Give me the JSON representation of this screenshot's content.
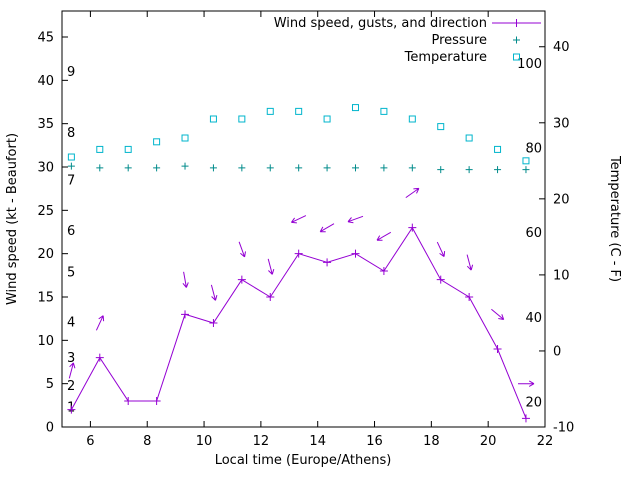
{
  "chart_data": {
    "type": "line",
    "title": "",
    "xlabel": "Local time (Europe/Athens)",
    "ylabel_left": "Wind speed (kt - Beaufort)",
    "ylabel_right": "Temperature (C - F)",
    "x_range": [
      5,
      22
    ],
    "y_left_range": [
      0,
      48
    ],
    "y_right_range": [
      -10,
      44.7
    ],
    "x_ticks": [
      6,
      8,
      10,
      12,
      14,
      16,
      18,
      20,
      22
    ],
    "y_left_ticks": [
      0,
      5,
      10,
      15,
      20,
      25,
      30,
      35,
      40,
      45
    ],
    "y_right_ticks": [
      -10,
      0,
      10,
      20,
      30,
      40
    ],
    "x": [
      5.33,
      6.33,
      7.33,
      8.33,
      9.33,
      10.33,
      11.33,
      12.33,
      13.33,
      14.33,
      15.33,
      16.33,
      17.33,
      18.33,
      19.33,
      20.33,
      21.33
    ],
    "series": [
      {
        "name": "Wind speed, gusts, and direction",
        "marker": "line+plus",
        "axis": "left",
        "color": "#9400d3",
        "values": [
          2,
          8,
          3,
          3,
          13,
          12,
          17,
          15,
          20,
          19,
          20,
          18,
          23,
          17,
          15,
          9,
          1
        ]
      },
      {
        "name": "Pressure",
        "marker": "plus",
        "axis": "left",
        "color": "#008b8b",
        "values": [
          30.1,
          29.9,
          29.9,
          29.9,
          30.1,
          29.9,
          29.9,
          29.9,
          29.9,
          29.9,
          29.9,
          29.9,
          29.9,
          29.7,
          29.7,
          29.7,
          29.7
        ]
      },
      {
        "name": "Temperature",
        "marker": "square",
        "axis": "right",
        "color": "#00b5cc",
        "values": [
          25.5,
          26.5,
          26.5,
          27.5,
          28,
          30.5,
          30.5,
          31.5,
          31.5,
          30.5,
          32,
          31.5,
          30.5,
          29.5,
          28,
          26.5,
          25
        ]
      }
    ],
    "gusts": {
      "color": "#9400d3",
      "points": [
        {
          "x": 5.33,
          "speed": 6.5,
          "dir": 75
        },
        {
          "x": 6.33,
          "speed": 12,
          "dir": 65
        },
        {
          "x": 9.33,
          "speed": 17,
          "dir": -80
        },
        {
          "x": 10.33,
          "speed": 15.5,
          "dir": -75
        },
        {
          "x": 11.33,
          "speed": 20.5,
          "dir": -70
        },
        {
          "x": 12.33,
          "speed": 18.5,
          "dir": -75
        },
        {
          "x": 13.33,
          "speed": 24,
          "dir": -155
        },
        {
          "x": 14.33,
          "speed": 23,
          "dir": -150
        },
        {
          "x": 15.33,
          "speed": 24,
          "dir": -160
        },
        {
          "x": 16.33,
          "speed": 22,
          "dir": -150
        },
        {
          "x": 17.33,
          "speed": 27,
          "dir": 35
        },
        {
          "x": 18.33,
          "speed": 20.5,
          "dir": -65
        },
        {
          "x": 19.33,
          "speed": 19,
          "dir": -75
        },
        {
          "x": 20.33,
          "speed": 13,
          "dir": -40
        },
        {
          "x": 21.33,
          "speed": 5,
          "dir": 0
        }
      ]
    },
    "beaufort_labels": [
      {
        "label": "1",
        "kt": 2.3
      },
      {
        "label": "2",
        "kt": 4.8
      },
      {
        "label": "3",
        "kt": 8
      },
      {
        "label": "4",
        "kt": 12.1
      },
      {
        "label": "5",
        "kt": 17.9
      },
      {
        "label": "6",
        "kt": 22.7
      },
      {
        "label": "7",
        "kt": 28.5
      },
      {
        "label": "8",
        "kt": 34
      },
      {
        "label": "9",
        "kt": 41
      }
    ],
    "fahrenheit_labels": [
      {
        "label": "20",
        "c": -6.7
      },
      {
        "label": "40",
        "c": 4.4
      },
      {
        "label": "60",
        "c": 15.6
      },
      {
        "label": "80",
        "c": 26.7
      },
      {
        "label": "100",
        "c": 37.8
      }
    ],
    "colors": {
      "axis": "#000000",
      "background": "#ffffff"
    }
  }
}
